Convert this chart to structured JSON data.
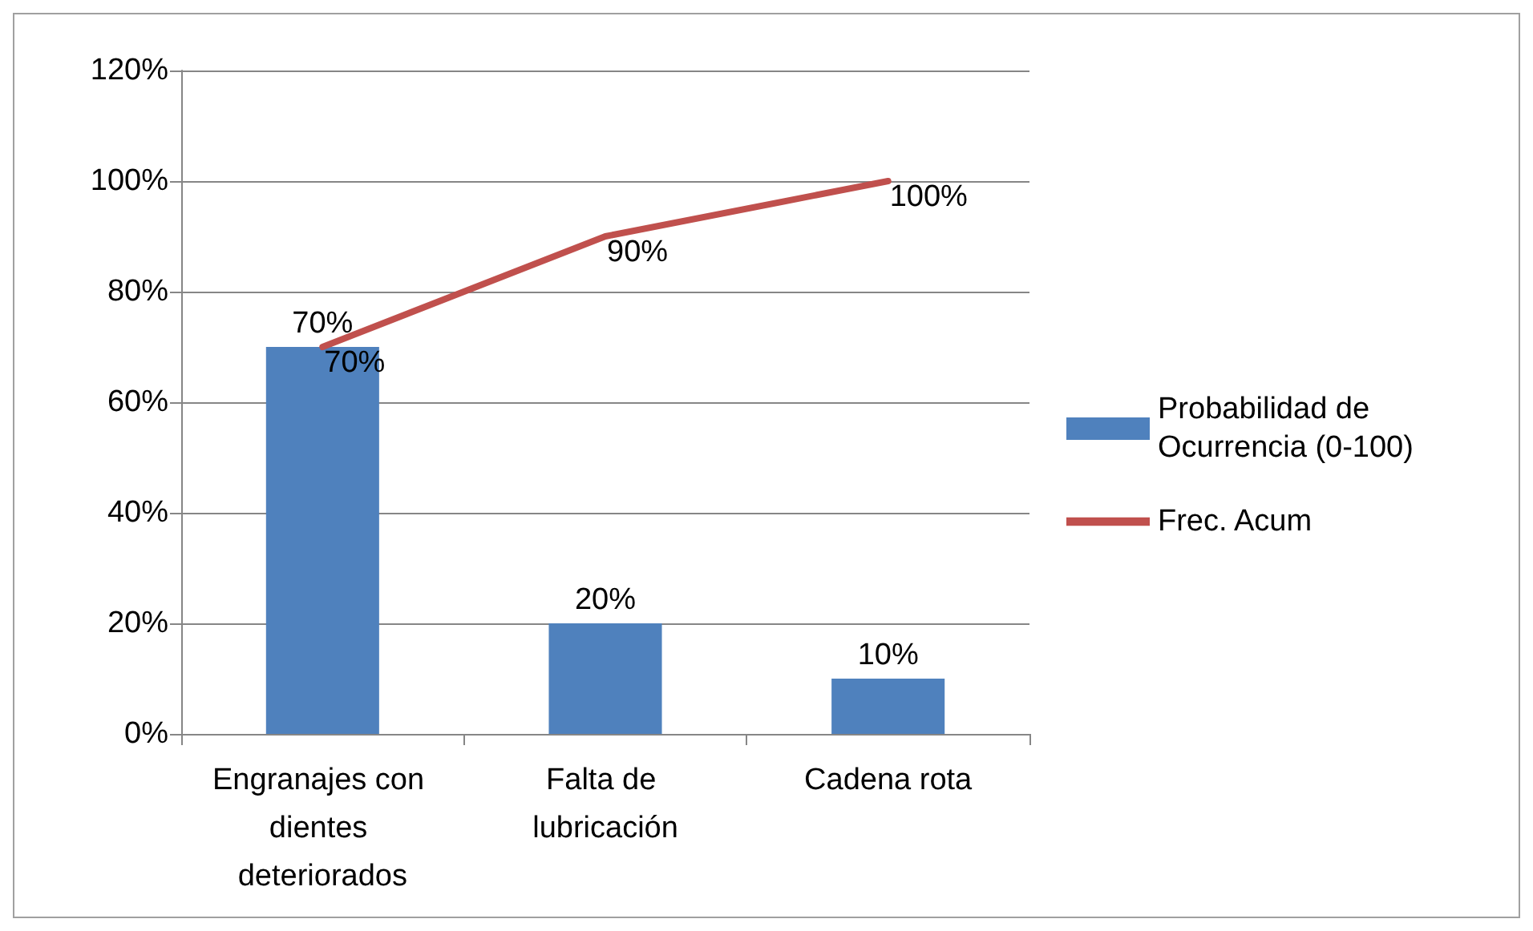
{
  "chart_data": {
    "type": "bar",
    "categories": [
      "Engranajes con dientes deteriorados",
      "Falta de lubricación",
      "Cadena rota"
    ],
    "series": [
      {
        "name": "Probabilidad de Ocurrencia (0-100)",
        "color": "#4f81bd",
        "values": [
          70,
          20,
          10
        ],
        "value_labels": [
          "70%",
          "20%",
          "10%"
        ]
      },
      {
        "name": "Frec. Acum",
        "type": "line",
        "color": "#c0504d",
        "values": [
          70,
          90,
          100
        ],
        "value_labels": [
          "70%",
          "90%",
          "100%"
        ]
      }
    ],
    "ylim": [
      0,
      120
    ],
    "yticks": [
      {
        "value": 0,
        "label": "0%"
      },
      {
        "value": 20,
        "label": "20%"
      },
      {
        "value": 40,
        "label": "40%"
      },
      {
        "value": 60,
        "label": "60%"
      },
      {
        "value": 80,
        "label": "80%"
      },
      {
        "value": 100,
        "label": "100%"
      },
      {
        "value": 120,
        "label": "120%"
      }
    ],
    "grid": "y",
    "legend": "right",
    "marker": "none",
    "line_style": "solid"
  }
}
